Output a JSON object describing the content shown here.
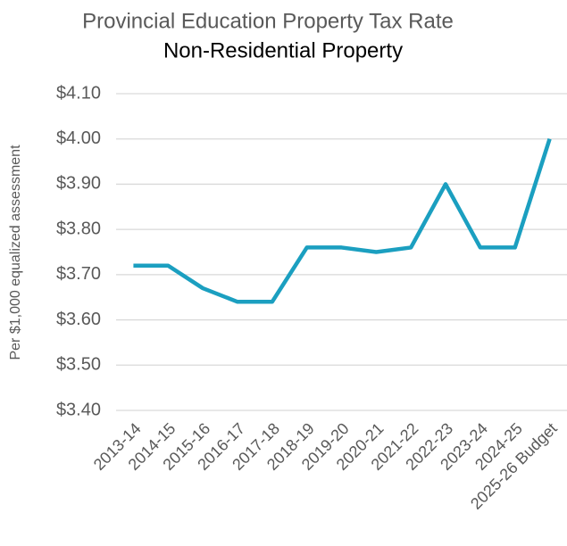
{
  "chart_data": {
    "type": "line",
    "title": "Provincial Education Property Tax Rate",
    "subtitle": "Non-Residential Property",
    "y_label": "Per $1,000 equalized assessment",
    "categories": [
      "2013-14",
      "2014-15",
      "2015-16",
      "2016-17",
      "2017-18",
      "2018-19",
      "2019-20",
      "2020-21",
      "2021-22",
      "2022-23",
      "2023-24",
      "2024-25",
      "2025-26 Budget"
    ],
    "series": [
      {
        "name": "Non-Residential Property",
        "color": "#1b9fc0",
        "values": [
          3.72,
          3.72,
          3.67,
          3.64,
          3.64,
          3.76,
          3.76,
          3.75,
          3.76,
          3.9,
          3.76,
          3.76,
          4.0
        ]
      }
    ],
    "ylim": [
      3.4,
      4.1
    ],
    "yticks": [
      {
        "value": 3.4,
        "label": "$3.40"
      },
      {
        "value": 3.5,
        "label": "$3.50"
      },
      {
        "value": 3.6,
        "label": "$3.60"
      },
      {
        "value": 3.7,
        "label": "$3.70"
      },
      {
        "value": 3.8,
        "label": "$3.80"
      },
      {
        "value": 3.9,
        "label": "$3.90"
      },
      {
        "value": 4.0,
        "label": "$4.00"
      },
      {
        "value": 4.1,
        "label": "$4.10"
      }
    ],
    "grid": true
  }
}
